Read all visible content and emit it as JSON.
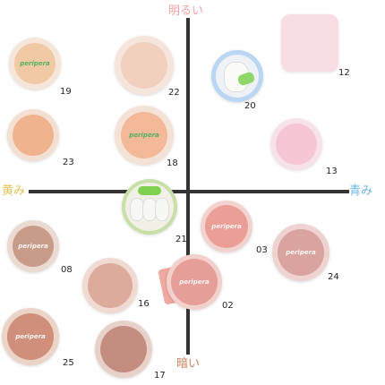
{
  "axis": {
    "top": "明るい",
    "bottom": "暗い",
    "left": "黄み",
    "right": "青み"
  },
  "brand": "peripera",
  "colors": {
    "axis": "#333333",
    "top_label": "#f3a0a0",
    "bottom_label": "#c8855e",
    "left_label": "#e5c55a",
    "right_label": "#6fb6e6"
  },
  "shades": [
    {
      "id": "19",
      "color": "#f2c9a5",
      "rim": "#f5e6d9"
    },
    {
      "id": "22",
      "color": "#f1d0bd",
      "rim": "#f6e5dd"
    },
    {
      "id": "23",
      "color": "#efb48e",
      "rim": "#f4e0d2"
    },
    {
      "id": "18",
      "color": "#f3b999",
      "rim": "#f5e2d7"
    },
    {
      "id": "21",
      "color": "#f5f3ee",
      "rim": "#c8e0a8"
    },
    {
      "id": "20",
      "color": "#f5f3ee",
      "rim": "#b9d6f3"
    },
    {
      "id": "12",
      "color": "#f6c3cd",
      "rim": "#f8dde3"
    },
    {
      "id": "13",
      "color": "#f6c6d5",
      "rim": "#f8e2ea"
    },
    {
      "id": "03",
      "color": "#ea9e95",
      "rim": "#f3d3cf"
    },
    {
      "id": "24",
      "color": "#d9a39f",
      "rim": "#eed3d1"
    },
    {
      "id": "08",
      "color": "#c99c8a",
      "rim": "#eadad1"
    },
    {
      "id": "16",
      "color": "#ddab9c",
      "rim": "#f0dad2"
    },
    {
      "id": "02",
      "color": "#e59f98",
      "rim": "#f2d0cb"
    },
    {
      "id": "25",
      "color": "#d08f7b",
      "rim": "#ecd4c8"
    },
    {
      "id": "17",
      "color": "#c38d80",
      "rim": "#e8d1c9"
    }
  ]
}
